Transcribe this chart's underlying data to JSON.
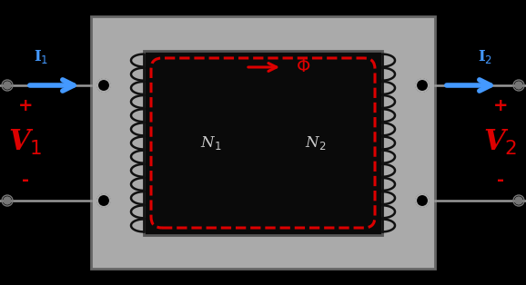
{
  "bg_color": "#000000",
  "core_outer_color": "#aaaaaa",
  "core_inner_color": "#111111",
  "flux_color": "#dd0000",
  "arrow_color": "#4499ff",
  "wire_color": "#999999",
  "label_color": "#dd0000",
  "coil_color": "#111111",
  "N1_label": "N$_1$",
  "N2_label": "N$_2$",
  "V1_label": "V$_1$",
  "V2_label": "V$_2$",
  "I1_label": "I$_1$",
  "I2_label": "I$_2$",
  "Phi_label": "$\\Phi$",
  "plus_symbol": "+",
  "minus_symbol": "-",
  "figsize": [
    5.78,
    3.14
  ],
  "dpi": 100
}
